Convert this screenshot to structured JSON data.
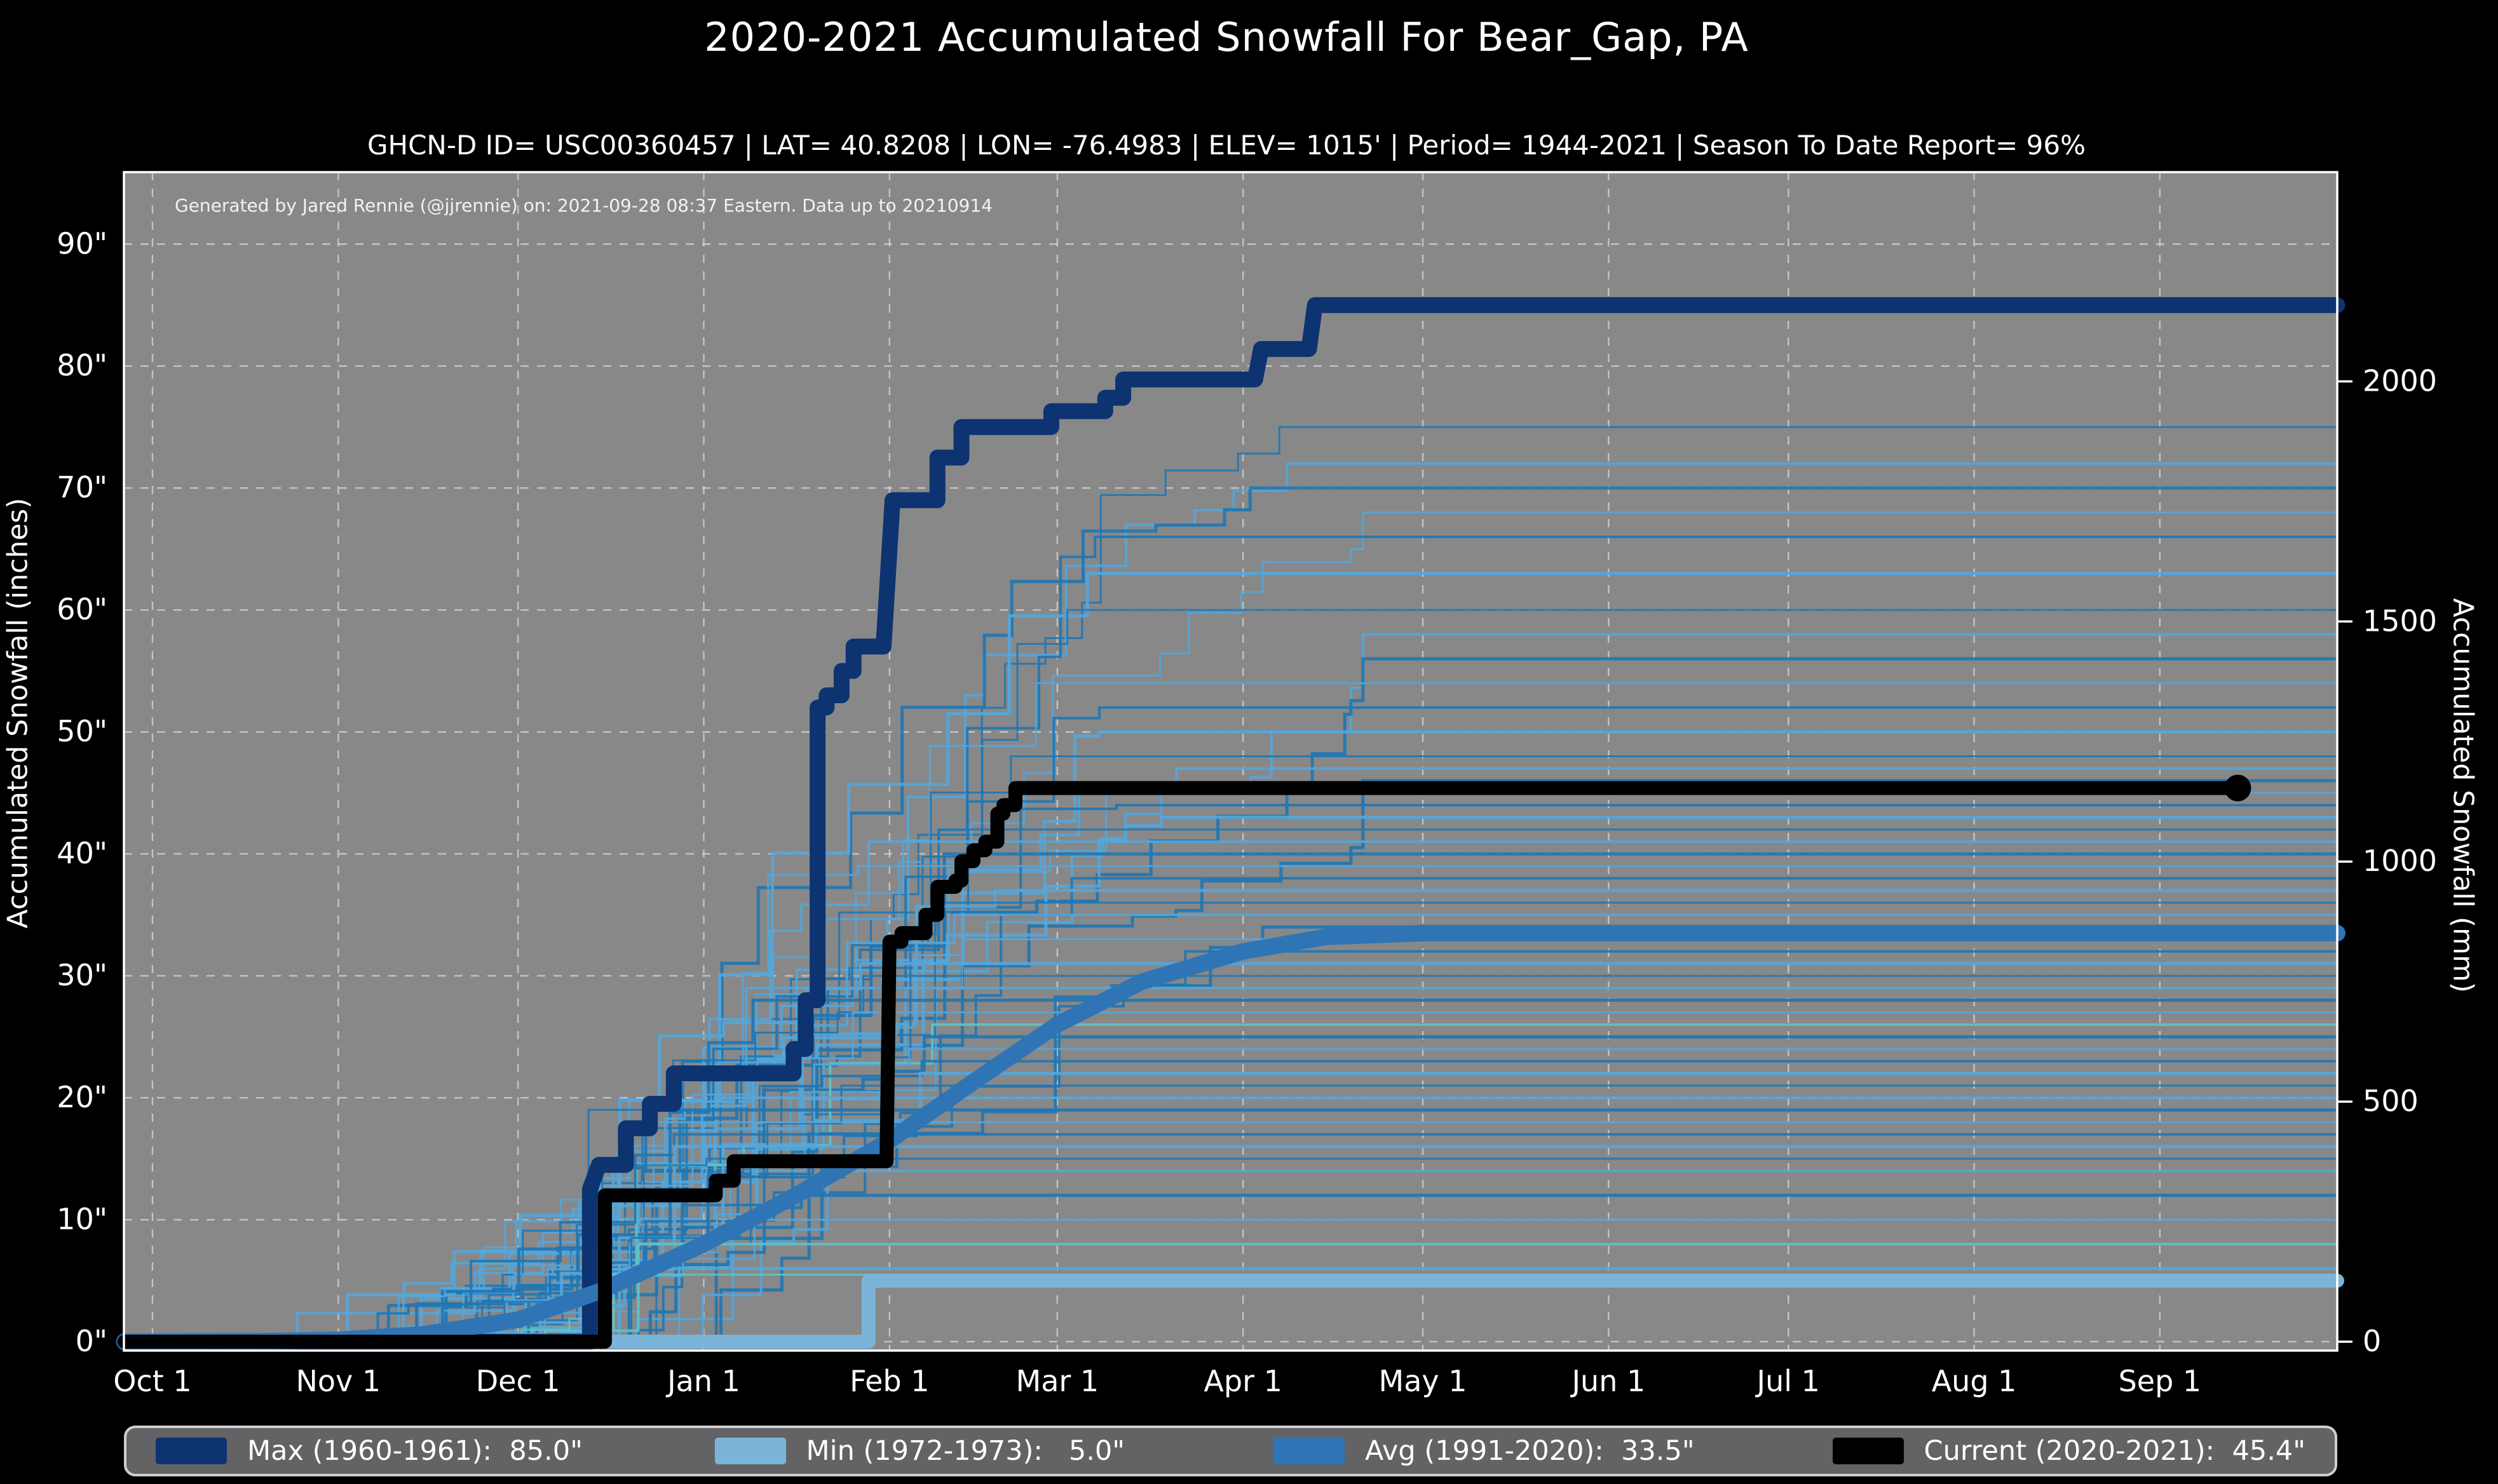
{
  "header": {
    "title": "2020-2021 Accumulated Snowfall For Bear_Gap, PA",
    "subtitle": "GHCN-D ID= USC00360457 | LAT= 40.8208 | LON= -76.4983 | ELEV= 1015' | Period= 1944-2021 | Season To Date Report= 96%"
  },
  "annotation": "Generated by Jared Rennie (@jjrennie) on: 2021-09-28 08:37 Eastern. Data up to 20210914",
  "axes": {
    "y_left": {
      "label": "Accumulated Snowfall (inches)",
      "tick_values": [
        0,
        10,
        20,
        30,
        40,
        50,
        60,
        70,
        80,
        90
      ],
      "tick_labels": [
        "0\"",
        "10\"",
        "20\"",
        "30\"",
        "40\"",
        "50\"",
        "60\"",
        "70\"",
        "80\"",
        "90\""
      ]
    },
    "y_right": {
      "label": "Accumulated Snowfall (mm)",
      "tick_values_mm": [
        0,
        500,
        1000,
        1500,
        2000
      ],
      "tick_labels": [
        "0",
        "500",
        "1000",
        "1500",
        "2000"
      ]
    },
    "x": {
      "tick_days": [
        0,
        31,
        61,
        92,
        123,
        151,
        182,
        212,
        243,
        273,
        304,
        335
      ],
      "tick_labels": [
        "Oct 1",
        "Nov 1",
        "Dec 1",
        "Jan 1",
        "Feb 1",
        "Mar 1",
        "Apr 1",
        "May 1",
        "Jun 1",
        "Jul 1",
        "Aug 1",
        "Sep 1"
      ]
    }
  },
  "legend": {
    "items": [
      {
        "key": "max",
        "label": "Max (1960-1961):  85.0\"",
        "color": "#0d3371"
      },
      {
        "key": "min",
        "label": "Min (1972-1973):   5.0\"",
        "color": "#7ab4d9"
      },
      {
        "key": "avg",
        "label": "Avg (1991-2020):  33.5\"",
        "color": "#2f75b6"
      },
      {
        "key": "current",
        "label": "Current (2020-2021):  45.4\"",
        "color": "#000000"
      }
    ]
  },
  "colors": {
    "figure_bg": "#000000",
    "plot_bg": "#888888",
    "grid": "#d9d9d9",
    "spine": "#ffffff",
    "max_line": "#0d3371",
    "min_line": "#7ab4d9",
    "avg_line": "#2f75b6",
    "current_line": "#000000",
    "annotation_text": "#f2f2f2",
    "season_palette": [
      "#1f77b4",
      "#54a6da",
      "#5fc4c4"
    ]
  },
  "chart_data": {
    "type": "line",
    "title": "2020-2021 Accumulated Snowfall For Bear_Gap, PA",
    "x_unit": "days since Oct 1",
    "xlim": [
      -4.77,
      364.6
    ],
    "ylim_inches": [
      -0.73,
      95.9
    ],
    "grid": true,
    "legend_position": "bottom",
    "mm_per_inch": 25.4,
    "series": [
      {
        "name": "Max (1960-1961)",
        "final_total_in": 85.0,
        "color": "#0d3371",
        "width": 25,
        "points": [
          [
            -4.7,
            0
          ],
          [
            73,
            0
          ],
          [
            73,
            12.5
          ],
          [
            74.5,
            14.5
          ],
          [
            79,
            14.5
          ],
          [
            79,
            17.5
          ],
          [
            83,
            17.5
          ],
          [
            83,
            19.5
          ],
          [
            87,
            19.5
          ],
          [
            87,
            22
          ],
          [
            107,
            22
          ],
          [
            107,
            24
          ],
          [
            109,
            24
          ],
          [
            109,
            28
          ],
          [
            111,
            28
          ],
          [
            111,
            52
          ],
          [
            112.5,
            52
          ],
          [
            112.5,
            53
          ],
          [
            115,
            53
          ],
          [
            115,
            55
          ],
          [
            117,
            55
          ],
          [
            117,
            57
          ],
          [
            122,
            57
          ],
          [
            123.5,
            69
          ],
          [
            131,
            69
          ],
          [
            131,
            72.5
          ],
          [
            135,
            72.5
          ],
          [
            135,
            75
          ],
          [
            150,
            75
          ],
          [
            150,
            76.3
          ],
          [
            159,
            76.3
          ],
          [
            159,
            77.4
          ],
          [
            162,
            77.4
          ],
          [
            162,
            78.9
          ],
          [
            184,
            78.9
          ],
          [
            185,
            81.4
          ],
          [
            193,
            81.4
          ],
          [
            194,
            85
          ],
          [
            364.6,
            85
          ]
        ]
      },
      {
        "name": "Min (1972-1973)",
        "final_total_in": 5.0,
        "color": "#7ab4d9",
        "width": 22,
        "points": [
          [
            -4.7,
            0
          ],
          [
            119.5,
            0
          ],
          [
            119.5,
            5
          ],
          [
            364.6,
            5
          ]
        ]
      },
      {
        "name": "Avg (1991-2020)",
        "final_total_in": 33.5,
        "color": "#2f75b6",
        "width": 26,
        "points": [
          [
            -4.7,
            0
          ],
          [
            20,
            0.05
          ],
          [
            31,
            0.15
          ],
          [
            45,
            0.6
          ],
          [
            61,
            1.8
          ],
          [
            75,
            4.2
          ],
          [
            92,
            8
          ],
          [
            107,
            11.9
          ],
          [
            123,
            16.5
          ],
          [
            137,
            21.3
          ],
          [
            151,
            26
          ],
          [
            165,
            29.5
          ],
          [
            182,
            32
          ],
          [
            196,
            33.2
          ],
          [
            212,
            33.5
          ],
          [
            364.6,
            33.5
          ]
        ]
      },
      {
        "name": "Current (2020-2021)",
        "final_total_in": 45.4,
        "color": "#000000",
        "width": 22,
        "end_marker": {
          "day": 348,
          "value": 45.4,
          "radius": 21
        },
        "points": [
          [
            -4.7,
            0
          ],
          [
            75.5,
            0
          ],
          [
            75.5,
            12
          ],
          [
            94,
            12
          ],
          [
            94,
            13.2
          ],
          [
            97,
            13.2
          ],
          [
            97,
            14.8
          ],
          [
            122.5,
            14.8
          ],
          [
            123,
            32.8
          ],
          [
            125,
            32.8
          ],
          [
            125,
            33.5
          ],
          [
            129,
            33.5
          ],
          [
            129,
            35
          ],
          [
            131,
            35
          ],
          [
            131,
            37.3
          ],
          [
            134,
            37.3
          ],
          [
            134,
            37.8
          ],
          [
            135,
            37.8
          ],
          [
            135,
            39.4
          ],
          [
            137,
            39.4
          ],
          [
            137,
            40.3
          ],
          [
            139,
            40.3
          ],
          [
            139,
            41
          ],
          [
            141,
            41
          ],
          [
            141,
            43.3
          ],
          [
            142,
            43.3
          ],
          [
            142,
            44
          ],
          [
            144,
            44
          ],
          [
            144,
            45.4
          ],
          [
            348,
            45.4
          ]
        ]
      }
    ],
    "background_seasons": {
      "description": "individual seasons 1944-2021, unlabeled thin step lines; value = season total inches at right edge",
      "entries": [
        {
          "t": 75,
          "c": 0
        },
        {
          "t": 72,
          "c": 1
        },
        {
          "t": 70,
          "c": 0
        },
        {
          "t": 68,
          "c": 1
        },
        {
          "t": 66,
          "c": 0
        },
        {
          "t": 63,
          "c": 1
        },
        {
          "t": 60,
          "c": 0
        },
        {
          "t": 58,
          "c": 1
        },
        {
          "t": 56,
          "c": 0
        },
        {
          "t": 54,
          "c": 1
        },
        {
          "t": 52,
          "c": 0
        },
        {
          "t": 50,
          "c": 1
        },
        {
          "t": 48,
          "c": 0
        },
        {
          "t": 47,
          "c": 1
        },
        {
          "t": 46,
          "c": 0
        },
        {
          "t": 45,
          "c": 1
        },
        {
          "t": 44,
          "c": 0
        },
        {
          "t": 43,
          "c": 1
        },
        {
          "t": 42,
          "c": 0
        },
        {
          "t": 41,
          "c": 1
        },
        {
          "t": 40,
          "c": 0
        },
        {
          "t": 39,
          "c": 1
        },
        {
          "t": 38,
          "c": 0
        },
        {
          "t": 37,
          "c": 1
        },
        {
          "t": 36,
          "c": 0
        },
        {
          "t": 35,
          "c": 1
        },
        {
          "t": 34,
          "c": 0
        },
        {
          "t": 33,
          "c": 1
        },
        {
          "t": 32,
          "c": 0
        },
        {
          "t": 31,
          "c": 1
        },
        {
          "t": 30,
          "c": 0
        },
        {
          "t": 29,
          "c": 1
        },
        {
          "t": 28,
          "c": 0
        },
        {
          "t": 27,
          "c": 1
        },
        {
          "t": 26,
          "c": 2
        },
        {
          "t": 25,
          "c": 0
        },
        {
          "t": 24,
          "c": 1
        },
        {
          "t": 23,
          "c": 0
        },
        {
          "t": 22,
          "c": 1
        },
        {
          "t": 21,
          "c": 0
        },
        {
          "t": 20,
          "c": 1
        },
        {
          "t": 19,
          "c": 0
        },
        {
          "t": 18,
          "c": 1
        },
        {
          "t": 17,
          "c": 0
        },
        {
          "t": 16,
          "c": 1
        },
        {
          "t": 15,
          "c": 0
        },
        {
          "t": 14,
          "c": 1
        },
        {
          "t": 12,
          "c": 0
        },
        {
          "t": 10,
          "c": 1
        },
        {
          "t": 8,
          "c": 2
        },
        {
          "t": 6,
          "c": 1
        },
        {
          "t": 5.5,
          "c": 2
        }
      ]
    }
  }
}
